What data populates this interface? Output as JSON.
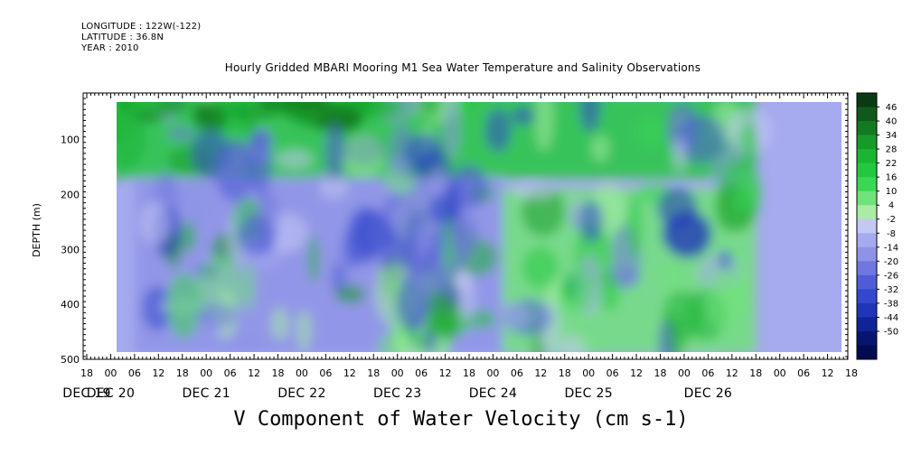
{
  "header": {
    "longitude": "LONGITUDE : 122W(-122)",
    "latitude": "LATITUDE : 36.8N",
    "year": "YEAR : 2010"
  },
  "chart_data": {
    "type": "heatmap",
    "title": "Hourly Gridded MBARI Mooring M1 Sea Water Temperature and Salinity Observations",
    "bottom_title": "V Component of Water Velocity (cm s-1)",
    "ylabel": "DEPTH (m)",
    "ylim": [
      500,
      15
    ],
    "y_ticks": [
      100,
      200,
      300,
      400,
      500
    ],
    "y_tick_labels": [
      "100",
      "200",
      "300",
      "400",
      "500"
    ],
    "x_hour_labels": [
      "18",
      "00",
      "06",
      "12",
      "18",
      "00",
      "06",
      "12",
      "18",
      "00",
      "06",
      "12",
      "18",
      "00",
      "06",
      "12",
      "18",
      "00",
      "06",
      "12",
      "18",
      "00",
      "06",
      "12",
      "18",
      "00",
      "06",
      "12",
      "18",
      "00",
      "06",
      "12",
      "18"
    ],
    "x_day_labels": [
      "DEC 19",
      "DEC 20",
      "DEC 21",
      "DEC 22",
      "DEC 23",
      "DEC 24",
      "DEC 25",
      "DEC 26"
    ],
    "x_day_label_hours": [
      0,
      6,
      24,
      24,
      24,
      24,
      24,
      30
    ],
    "data_range_days": [
      "DEC 20 00",
      "DEC 26 18"
    ],
    "colorbar": {
      "levels": [
        "46",
        "40",
        "34",
        "28",
        "22",
        "16",
        "10",
        "4",
        "-2",
        "-8",
        "-14",
        "-20",
        "-26",
        "-32",
        "-38",
        "-44",
        "-50"
      ],
      "colors": [
        "#0a3a12",
        "#0f5a1a",
        "#137a22",
        "#179a2a",
        "#1bb534",
        "#24c83e",
        "#3bd653",
        "#70e27a",
        "#a8eca6",
        "#c4c8f4",
        "#a6aaee",
        "#8e93e6",
        "#6f78de",
        "#4f5cd6",
        "#3348cc",
        "#1f36b8",
        "#0f2496",
        "#061670",
        "#020b50"
      ]
    },
    "regions": [
      {
        "name": "surface-green-band",
        "x_days": [
          0,
          6.75
        ],
        "depth": [
          15,
          170
        ],
        "level": "22"
      },
      {
        "name": "blue-interior",
        "x_days": [
          0.25,
          4.1
        ],
        "depth": [
          170,
          490
        ],
        "level": "-14"
      },
      {
        "name": "green-column-dec23",
        "x_days": [
          2.95,
          3.55
        ],
        "depth": [
          220,
          490
        ],
        "level": "10"
      },
      {
        "name": "green-block-dec24-26",
        "x_days": [
          4.1,
          6.75
        ],
        "depth": [
          190,
          490
        ],
        "level": "10"
      }
    ]
  }
}
